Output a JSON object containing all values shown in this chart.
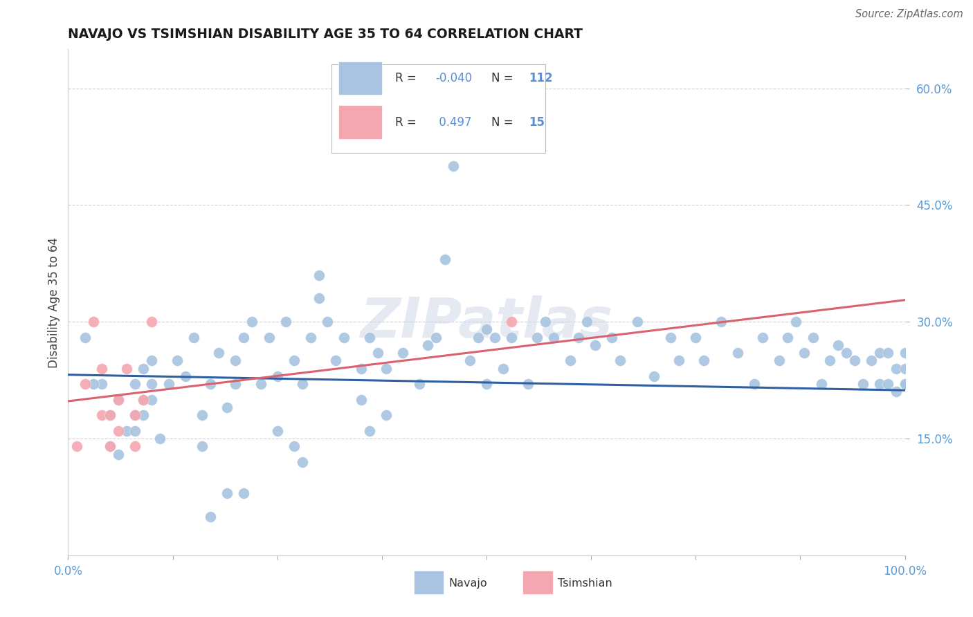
{
  "title": "NAVAJO VS TSIMSHIAN DISABILITY AGE 35 TO 64 CORRELATION CHART",
  "source": "Source: ZipAtlas.com",
  "ylabel": "Disability Age 35 to 64",
  "xlim": [
    0,
    1.0
  ],
  "ylim": [
    0,
    0.65
  ],
  "ytick_positions": [
    0.15,
    0.3,
    0.45,
    0.6
  ],
  "ytick_labels": [
    "15.0%",
    "30.0%",
    "45.0%",
    "60.0%"
  ],
  "navajo_R": "-0.040",
  "navajo_N": "112",
  "tsimshian_R": "0.497",
  "tsimshian_N": "15",
  "navajo_color": "#a8c4e0",
  "tsimshian_color": "#f4a7b0",
  "navajo_line_color": "#2e5fa3",
  "tsimshian_line_color": "#d9626e",
  "r_color": "#5b8fd4",
  "n_color": "#5b8fd4",
  "background_color": "#ffffff",
  "watermark_text": "ZIPatlas",
  "navajo_x": [
    0.02,
    0.04,
    0.05,
    0.05,
    0.06,
    0.07,
    0.08,
    0.08,
    0.09,
    0.09,
    0.1,
    0.1,
    0.1,
    0.11,
    0.12,
    0.13,
    0.14,
    0.15,
    0.16,
    0.16,
    0.17,
    0.18,
    0.19,
    0.2,
    0.2,
    0.21,
    0.22,
    0.23,
    0.24,
    0.25,
    0.26,
    0.27,
    0.28,
    0.29,
    0.3,
    0.3,
    0.31,
    0.32,
    0.33,
    0.35,
    0.36,
    0.37,
    0.38,
    0.4,
    0.42,
    0.43,
    0.44,
    0.45,
    0.46,
    0.47,
    0.48,
    0.49,
    0.5,
    0.5,
    0.51,
    0.52,
    0.53,
    0.55,
    0.56,
    0.57,
    0.58,
    0.6,
    0.61,
    0.62,
    0.63,
    0.65,
    0.66,
    0.68,
    0.7,
    0.72,
    0.73,
    0.75,
    0.76,
    0.78,
    0.8,
    0.82,
    0.83,
    0.85,
    0.86,
    0.87,
    0.88,
    0.89,
    0.9,
    0.91,
    0.92,
    0.93,
    0.94,
    0.95,
    0.96,
    0.97,
    0.97,
    0.98,
    0.98,
    0.99,
    0.99,
    1.0,
    1.0,
    1.0,
    1.0,
    0.35,
    0.36,
    0.38,
    0.25,
    0.27,
    0.28,
    0.17,
    0.19,
    0.21,
    0.06,
    0.08,
    0.09,
    0.03
  ],
  "navajo_y": [
    0.28,
    0.22,
    0.18,
    0.14,
    0.2,
    0.16,
    0.22,
    0.18,
    0.24,
    0.2,
    0.25,
    0.22,
    0.2,
    0.15,
    0.22,
    0.25,
    0.23,
    0.28,
    0.14,
    0.18,
    0.22,
    0.26,
    0.19,
    0.25,
    0.22,
    0.28,
    0.3,
    0.22,
    0.28,
    0.23,
    0.3,
    0.25,
    0.22,
    0.28,
    0.33,
    0.36,
    0.3,
    0.25,
    0.28,
    0.24,
    0.28,
    0.26,
    0.24,
    0.26,
    0.22,
    0.27,
    0.28,
    0.38,
    0.5,
    0.54,
    0.25,
    0.28,
    0.22,
    0.29,
    0.28,
    0.24,
    0.28,
    0.22,
    0.28,
    0.3,
    0.28,
    0.25,
    0.28,
    0.3,
    0.27,
    0.28,
    0.25,
    0.3,
    0.23,
    0.28,
    0.25,
    0.28,
    0.25,
    0.3,
    0.26,
    0.22,
    0.28,
    0.25,
    0.28,
    0.3,
    0.26,
    0.28,
    0.22,
    0.25,
    0.27,
    0.26,
    0.25,
    0.22,
    0.25,
    0.26,
    0.22,
    0.26,
    0.22,
    0.24,
    0.21,
    0.22,
    0.26,
    0.24,
    0.22,
    0.2,
    0.16,
    0.18,
    0.16,
    0.14,
    0.12,
    0.05,
    0.08,
    0.08,
    0.13,
    0.16,
    0.18,
    0.22
  ],
  "tsimshian_x": [
    0.01,
    0.02,
    0.03,
    0.04,
    0.04,
    0.05,
    0.05,
    0.06,
    0.06,
    0.07,
    0.08,
    0.08,
    0.09,
    0.1,
    0.53
  ],
  "tsimshian_y": [
    0.14,
    0.22,
    0.3,
    0.18,
    0.24,
    0.14,
    0.18,
    0.16,
    0.2,
    0.24,
    0.14,
    0.18,
    0.2,
    0.3,
    0.3
  ]
}
